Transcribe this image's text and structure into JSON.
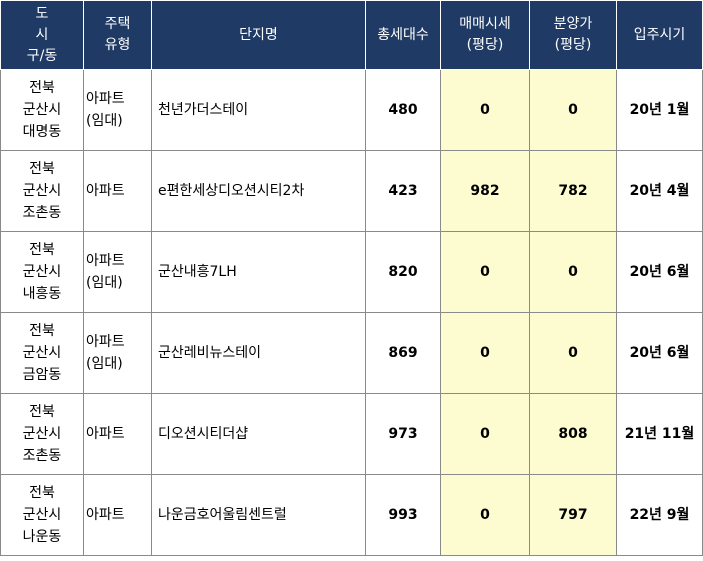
{
  "headers": {
    "region": [
      "도",
      "시",
      "구/동"
    ],
    "type": [
      "주택",
      "유형"
    ],
    "name": "단지명",
    "units": "총세대수",
    "sale_price": [
      "매매시세",
      "(평당)"
    ],
    "presale_price": [
      "분양가",
      "(평당)"
    ],
    "move_in": "입주시기"
  },
  "rows": [
    {
      "region": [
        "전북",
        "군산시",
        "대명동"
      ],
      "type": [
        "아파트",
        "(임대)"
      ],
      "name": "천년가더스테이",
      "units": "480",
      "sale_price": "0",
      "presale_price": "0",
      "move_in": "20년 1월"
    },
    {
      "region": [
        "전북",
        "군산시",
        "조촌동"
      ],
      "type": [
        "아파트"
      ],
      "name": "e편한세상디오션시티2차",
      "units": "423",
      "sale_price": "982",
      "presale_price": "782",
      "move_in": "20년 4월"
    },
    {
      "region": [
        "전북",
        "군산시",
        "내흥동"
      ],
      "type": [
        "아파트",
        "(임대)"
      ],
      "name": "군산내흥7LH",
      "units": "820",
      "sale_price": "0",
      "presale_price": "0",
      "move_in": "20년 6월"
    },
    {
      "region": [
        "전북",
        "군산시",
        "금암동"
      ],
      "type": [
        "아파트",
        "(임대)"
      ],
      "name": "군산레비뉴스테이",
      "units": "869",
      "sale_price": "0",
      "presale_price": "0",
      "move_in": "20년 6월"
    },
    {
      "region": [
        "전북",
        "군산시",
        "조촌동"
      ],
      "type": [
        "아파트"
      ],
      "name": "디오션시티더샵",
      "units": "973",
      "sale_price": "0",
      "presale_price": "808",
      "move_in": "21년 11월"
    },
    {
      "region": [
        "전북",
        "군산시",
        "나운동"
      ],
      "type": [
        "아파트"
      ],
      "name": "나운금호어울림센트럴",
      "units": "993",
      "sale_price": "0",
      "presale_price": "797",
      "move_in": "22년 9월"
    }
  ],
  "colors": {
    "header_bg": "#1f3a64",
    "header_text": "#ffffff",
    "price_highlight": "#fdfcd0",
    "border": "#8a8a8a"
  }
}
